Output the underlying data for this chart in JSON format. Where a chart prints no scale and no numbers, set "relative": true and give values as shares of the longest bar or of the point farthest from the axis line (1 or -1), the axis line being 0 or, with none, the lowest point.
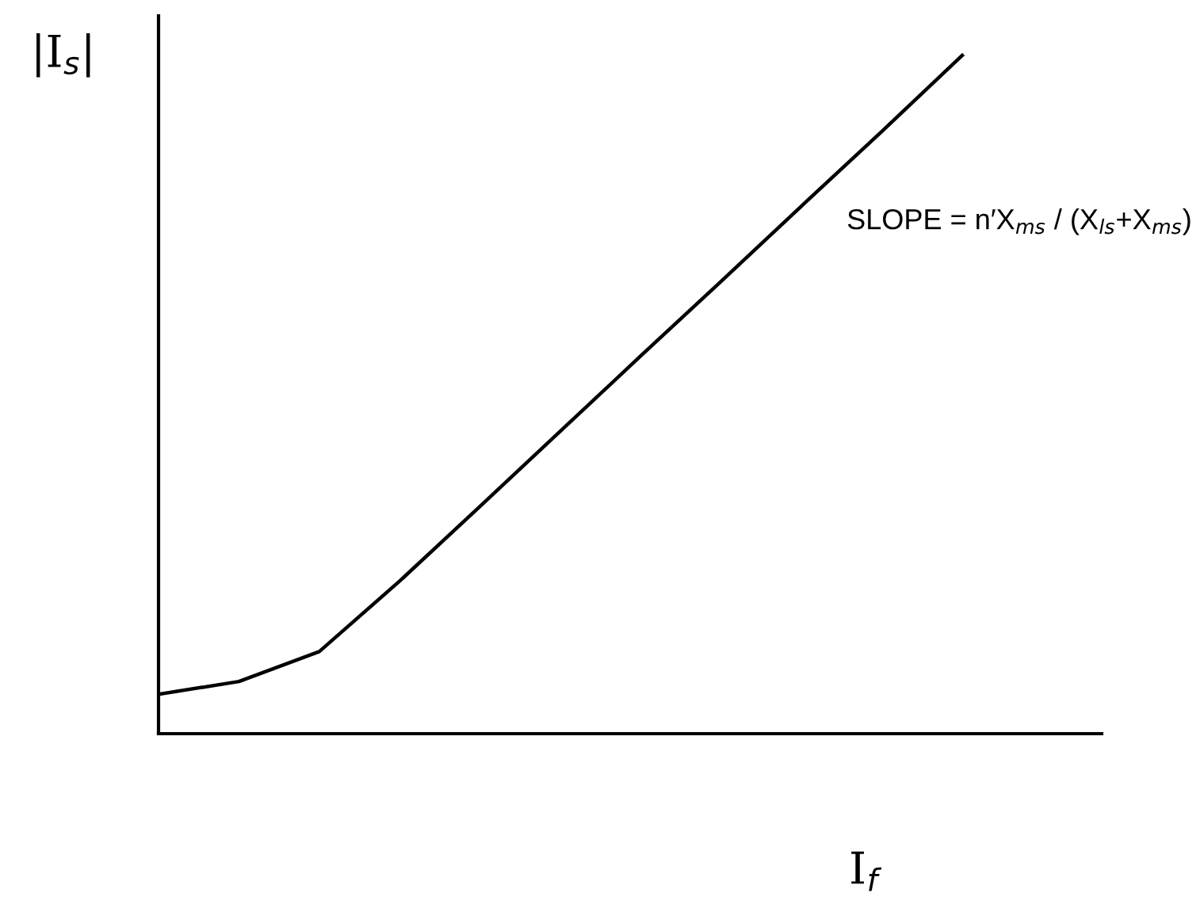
{
  "chart_data": {
    "type": "line",
    "relative": true,
    "ylabel": "|I$_{s}$|",
    "xlabel": "I$_{f}$",
    "categories": [
      null,
      null,
      null,
      null,
      null,
      null,
      null,
      null,
      null,
      null,
      null
    ],
    "series": [
      {
        "color": "#000000",
        "values": [
          0.058,
          0.077,
          0.121,
          0.225,
          0.335,
          0.446,
          0.557,
          0.667,
          0.778,
          0.888,
          1
        ]
      }
    ],
    "annotations": [
      "SLOPE = n′X$_{ms}$ / (X$_{ls}$+X$_{ms}$)"
    ],
    "grid": false,
    "legend": false,
    "marker": "none",
    "line_style": "solid"
  }
}
